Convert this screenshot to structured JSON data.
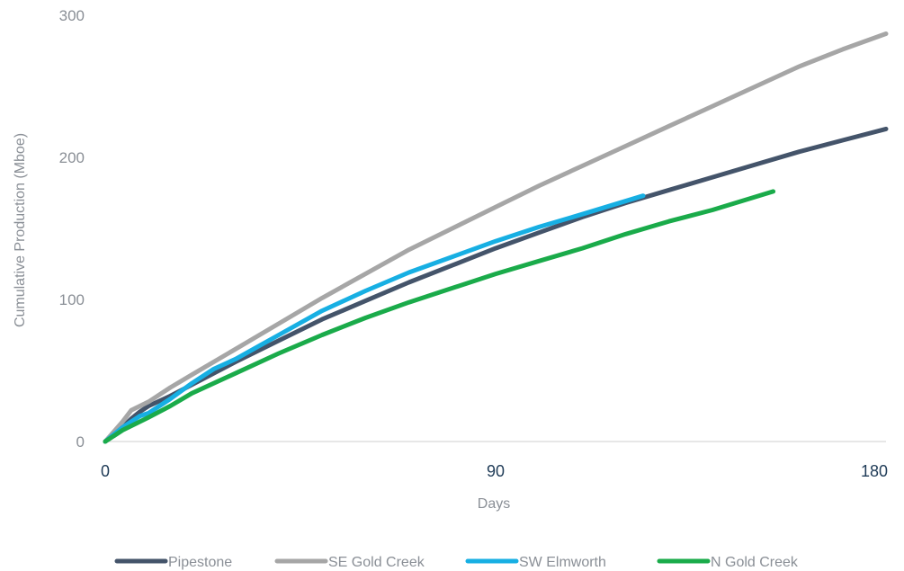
{
  "chart_data": {
    "type": "line",
    "xlabel": "Days",
    "ylabel": "Cumulative Production (Mboe)",
    "xlim": [
      0,
      180
    ],
    "ylim": [
      0,
      300
    ],
    "x_ticks": [
      "0",
      "90",
      "180"
    ],
    "y_ticks": [
      "0",
      "100",
      "200",
      "300"
    ],
    "grid": false,
    "legend_position": "bottom",
    "series": [
      {
        "name": "Pipestone",
        "color": "#44546a",
        "x": [
          0,
          4,
          6,
          8,
          10,
          15,
          20,
          30,
          40,
          50,
          60,
          70,
          80,
          90,
          100,
          110,
          120,
          130,
          140,
          150,
          160,
          170,
          180
        ],
        "y": [
          0,
          10,
          16,
          21,
          25,
          32,
          40,
          56,
          71,
          86,
          99,
          112,
          124,
          136,
          147,
          158,
          168,
          177,
          186,
          195,
          204,
          212,
          220
        ]
      },
      {
        "name": "SE Gold Creek",
        "color": "#a6a6a6",
        "x": [
          0,
          4,
          6,
          8,
          10,
          15,
          20,
          30,
          40,
          50,
          60,
          70,
          80,
          90,
          100,
          110,
          120,
          130,
          140,
          150,
          160,
          170,
          180
        ],
        "y": [
          0,
          14,
          22,
          25,
          28,
          38,
          47,
          65,
          83,
          101,
          118,
          135,
          150,
          165,
          180,
          194,
          208,
          222,
          236,
          250,
          264,
          276,
          287
        ]
      },
      {
        "name": "SW Elmworth",
        "color": "#17afe3",
        "x": [
          0,
          4,
          8,
          10,
          15,
          20,
          25,
          30,
          40,
          50,
          60,
          70,
          80,
          90,
          100,
          110,
          124
        ],
        "y": [
          0,
          10,
          18,
          20,
          30,
          41,
          51,
          58,
          75,
          92,
          106,
          119,
          130,
          141,
          151,
          160,
          173
        ]
      },
      {
        "name": "N Gold Creek",
        "color": "#1aab4a",
        "x": [
          0,
          4,
          8,
          10,
          15,
          20,
          30,
          40,
          50,
          60,
          70,
          80,
          90,
          100,
          110,
          120,
          130,
          140,
          154
        ],
        "y": [
          0,
          8,
          14,
          17,
          25,
          34,
          48,
          62,
          75,
          87,
          98,
          108,
          118,
          127,
          136,
          146,
          155,
          163,
          176
        ]
      }
    ]
  }
}
